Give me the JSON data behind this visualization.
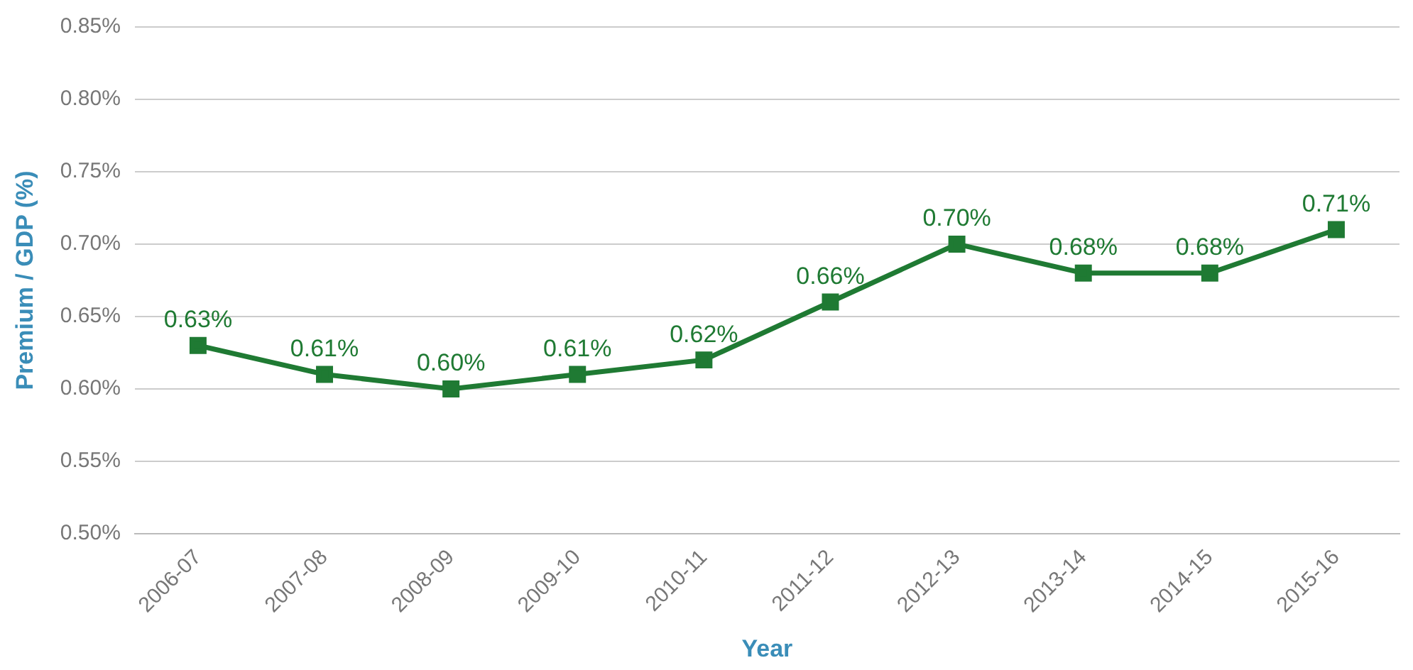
{
  "chart_data": {
    "type": "line",
    "xlabel": "Year",
    "ylabel": "Premium / GDP (%)",
    "categories": [
      "2006-07",
      "2007-08",
      "2008-09",
      "2009-10",
      "2010-11",
      "2011-12",
      "2012-13",
      "2013-14",
      "2014-15",
      "2015-16"
    ],
    "series": [
      {
        "color": "#1f7a33",
        "values": [
          0.63,
          0.61,
          0.6,
          0.61,
          0.62,
          0.66,
          0.7,
          0.68,
          0.68,
          0.71
        ],
        "value_labels": [
          "0.63%",
          "0.61%",
          "0.60%",
          "0.61%",
          "0.62%",
          "0.66%",
          "0.70%",
          "0.68%",
          "0.68%",
          "0.71%"
        ]
      }
    ],
    "ylim": [
      0.5,
      0.85
    ],
    "yticks": [
      {
        "value": 0.5,
        "label": "0.50%"
      },
      {
        "value": 0.55,
        "label": "0.55%"
      },
      {
        "value": 0.6,
        "label": "0.60%"
      },
      {
        "value": 0.65,
        "label": "0.65%"
      },
      {
        "value": 0.7,
        "label": "0.70%"
      },
      {
        "value": 0.75,
        "label": "0.75%"
      },
      {
        "value": 0.8,
        "label": "0.80%"
      },
      {
        "value": 0.85,
        "label": "0.85%"
      }
    ],
    "grid": "y",
    "marker": "square",
    "line_style": "solid",
    "legend": false
  }
}
